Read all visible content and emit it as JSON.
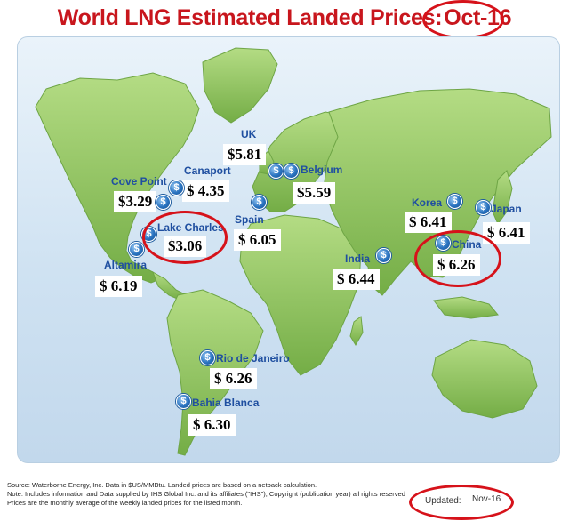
{
  "title": {
    "text": "World LNG Estimated Landed Prices:",
    "month": "Oct-16"
  },
  "terminals": {
    "uk": {
      "name": "UK",
      "price": "$5.81"
    },
    "belgium": {
      "name": "Belgium",
      "price": "$5.59"
    },
    "canaport": {
      "name": "Canaport",
      "price": "$  4.35"
    },
    "cove_point": {
      "name": "Cove Point",
      "price": "$3.29"
    },
    "lake_charles": {
      "name": "Lake Charles",
      "price": "$3.06"
    },
    "altamira": {
      "name": "Altamira",
      "price": "$  6.19"
    },
    "spain": {
      "name": "Spain",
      "price": "$  6.05"
    },
    "india": {
      "name": "India",
      "price": "$  6.44"
    },
    "korea": {
      "name": "Korea",
      "price": "$  6.41"
    },
    "japan": {
      "name": "Japan",
      "price": "$  6.41"
    },
    "china": {
      "name": "China",
      "price": "$  6.26"
    },
    "rio": {
      "name": "Rio de Janeiro",
      "price": "$  6.26"
    },
    "bahia": {
      "name": "Bahia Blanca",
      "price": "$  6.30"
    }
  },
  "footer": {
    "source": "Source: Waterborne Energy, Inc. Data in $US/MMBtu. Landed prices are based on a netback calculation.",
    "note": "Note: Includes information and Data supplied by IHS Global Inc. and its affiliates (\"IHS\"); Copyright (publication year) all rights reserved",
    "avg": "Prices are the monthly average of the weekly landed prices for the listed month."
  },
  "updated": {
    "label": "Updated:",
    "value": "Nov-16"
  },
  "colors": {
    "title": "#c8161d",
    "ring": "#d6121a",
    "label": "#1f4fa0",
    "land": "#8fc65a",
    "ocean": "#cfe2f2"
  },
  "icons": {
    "terminal": "dollar-pin-icon"
  }
}
